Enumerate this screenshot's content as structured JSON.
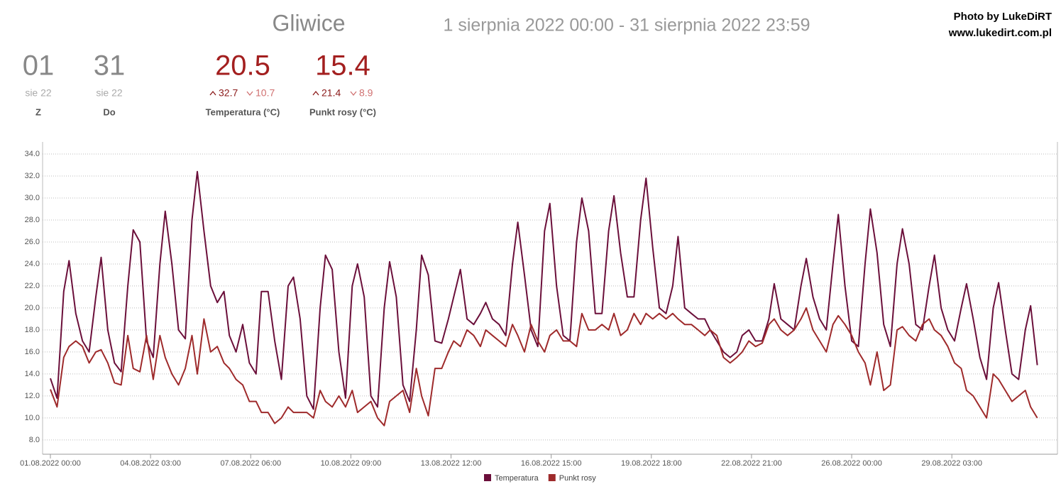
{
  "header": {
    "title": "Gliwice",
    "range": "1 sierpnia 2022 00:00 - 31 sierpnia 2022 23:59",
    "credit": "Photo by LukeDiRT",
    "site": "www.lukedirt.com.pl",
    "stats": [
      {
        "value": "01",
        "sub": "sie 22",
        "label": "Z"
      },
      {
        "value": "31",
        "sub": "sie 22",
        "label": "Do"
      },
      {
        "value": "20.5",
        "max": "32.7",
        "min": "10.7",
        "label": "Temperatura (°C)"
      },
      {
        "value": "15.4",
        "max": "21.4",
        "min": "8.9",
        "label": "Punkt rosy (°C)"
      }
    ]
  },
  "chart_data": {
    "type": "line",
    "x": [
      "01.08.2022 00:00",
      "01.08.2022 05:00",
      "01.08.2022 10:00",
      "01.08.2022 14:00",
      "01.08.2022 19:00",
      "02.08.2022 00:00",
      "02.08.2022 05:00",
      "02.08.2022 10:00",
      "02.08.2022 14:00",
      "02.08.2022 19:00",
      "03.08.2022 00:00",
      "03.08.2022 05:00",
      "03.08.2022 10:00",
      "03.08.2022 14:00",
      "03.08.2022 19:00",
      "04.08.2022 00:00",
      "04.08.2022 05:00",
      "04.08.2022 10:00",
      "04.08.2022 14:00",
      "04.08.2022 19:00",
      "05.08.2022 00:00",
      "05.08.2022 05:00",
      "05.08.2022 10:00",
      "05.08.2022 14:00",
      "05.08.2022 19:00",
      "06.08.2022 00:00",
      "06.08.2022 05:00",
      "06.08.2022 10:00",
      "06.08.2022 14:00",
      "06.08.2022 19:00",
      "07.08.2022 00:00",
      "07.08.2022 05:00",
      "07.08.2022 10:00",
      "07.08.2022 14:00",
      "07.08.2022 19:00",
      "08.08.2022 00:00",
      "08.08.2022 05:00",
      "08.08.2022 10:00",
      "08.08.2022 14:00",
      "08.08.2022 19:00",
      "09.08.2022 00:00",
      "09.08.2022 05:00",
      "09.08.2022 10:00",
      "09.08.2022 14:00",
      "09.08.2022 19:00",
      "10.08.2022 00:00",
      "10.08.2022 05:00",
      "10.08.2022 10:00",
      "10.08.2022 14:00",
      "10.08.2022 19:00",
      "11.08.2022 00:00",
      "11.08.2022 05:00",
      "11.08.2022 10:00",
      "11.08.2022 14:00",
      "11.08.2022 19:00",
      "12.08.2022 00:00",
      "12.08.2022 05:00",
      "12.08.2022 10:00",
      "12.08.2022 14:00",
      "12.08.2022 19:00",
      "13.08.2022 00:00",
      "13.08.2022 05:00",
      "13.08.2022 10:00",
      "13.08.2022 14:00",
      "13.08.2022 19:00",
      "14.08.2022 00:00",
      "14.08.2022 05:00",
      "14.08.2022 10:00",
      "14.08.2022 14:00",
      "14.08.2022 19:00",
      "15.08.2022 00:00",
      "15.08.2022 05:00",
      "15.08.2022 10:00",
      "15.08.2022 14:00",
      "15.08.2022 19:00",
      "16.08.2022 00:00",
      "16.08.2022 05:00",
      "16.08.2022 10:00",
      "16.08.2022 14:00",
      "16.08.2022 19:00",
      "17.08.2022 00:00",
      "17.08.2022 05:00",
      "17.08.2022 10:00",
      "17.08.2022 14:00",
      "17.08.2022 19:00",
      "18.08.2022 00:00",
      "18.08.2022 05:00",
      "18.08.2022 10:00",
      "18.08.2022 14:00",
      "18.08.2022 19:00",
      "19.08.2022 00:00",
      "19.08.2022 05:00",
      "19.08.2022 10:00",
      "19.08.2022 14:00",
      "19.08.2022 19:00",
      "20.08.2022 00:00",
      "20.08.2022 05:00",
      "20.08.2022 10:00",
      "20.08.2022 14:00",
      "20.08.2022 19:00",
      "21.08.2022 00:00",
      "21.08.2022 05:00",
      "21.08.2022 10:00",
      "21.08.2022 14:00",
      "21.08.2022 19:00",
      "22.08.2022 00:00",
      "22.08.2022 05:00",
      "22.08.2022 10:00",
      "22.08.2022 14:00",
      "22.08.2022 19:00",
      "23.08.2022 00:00",
      "23.08.2022 05:00",
      "23.08.2022 10:00",
      "23.08.2022 14:00",
      "23.08.2022 19:00",
      "24.08.2022 00:00",
      "24.08.2022 05:00",
      "24.08.2022 10:00",
      "24.08.2022 14:00",
      "24.08.2022 19:00",
      "25.08.2022 00:00",
      "25.08.2022 05:00",
      "25.08.2022 10:00",
      "25.08.2022 14:00",
      "25.08.2022 19:00",
      "26.08.2022 00:00",
      "26.08.2022 05:00",
      "26.08.2022 10:00",
      "26.08.2022 14:00",
      "26.08.2022 19:00",
      "27.08.2022 00:00",
      "27.08.2022 05:00",
      "27.08.2022 10:00",
      "27.08.2022 14:00",
      "27.08.2022 19:00",
      "28.08.2022 00:00",
      "28.08.2022 05:00",
      "28.08.2022 10:00",
      "28.08.2022 14:00",
      "28.08.2022 19:00",
      "29.08.2022 00:00",
      "29.08.2022 05:00",
      "29.08.2022 10:00",
      "29.08.2022 14:00",
      "29.08.2022 19:00",
      "30.08.2022 00:00",
      "30.08.2022 05:00",
      "30.08.2022 10:00",
      "30.08.2022 14:00",
      "30.08.2022 19:00",
      "31.08.2022 00:00",
      "31.08.2022 05:00",
      "31.08.2022 10:00",
      "31.08.2022 14:00",
      "31.08.2022 19:00"
    ],
    "series": [
      {
        "name": "Temperatura",
        "color": "#6b0f3a",
        "values": [
          13.6,
          11.8,
          21.5,
          24.3,
          19.5,
          17,
          16,
          21,
          24.6,
          18,
          15,
          14.2,
          22,
          27.1,
          26,
          17,
          15.5,
          24,
          28.8,
          24,
          18,
          17.2,
          28,
          32.4,
          27,
          22,
          20.5,
          21.5,
          17.5,
          16,
          18.5,
          15,
          14,
          21.5,
          21.5,
          17,
          13.5,
          22,
          22.8,
          19,
          12,
          10.8,
          20,
          24.8,
          23.5,
          16,
          11.8,
          22,
          24.0,
          21,
          12,
          11,
          20,
          24.2,
          21,
          13,
          11.5,
          18,
          24.8,
          23,
          17,
          16.8,
          19,
          21,
          23.5,
          19,
          18.5,
          19.5,
          20.5,
          19,
          18.5,
          17.5,
          24,
          27.8,
          23,
          18,
          16.5,
          27,
          29.5,
          22,
          17.5,
          17,
          26,
          30,
          27,
          19.5,
          19.5,
          27,
          30.2,
          25,
          21,
          21,
          28,
          31.8,
          25.5,
          20,
          19.5,
          22,
          26.5,
          20,
          19.5,
          19,
          19,
          18,
          17,
          16,
          15.5,
          16,
          17.5,
          18,
          17,
          17,
          19,
          22.2,
          19,
          18.5,
          18,
          22,
          24.5,
          21,
          19,
          18,
          24,
          28.5,
          22,
          17,
          16.5,
          24,
          29,
          25,
          18.5,
          16.5,
          24,
          27.2,
          24,
          18.5,
          18,
          22,
          24.8,
          20,
          18,
          17,
          20,
          22.2,
          19,
          15.5,
          13.5,
          20,
          22.3,
          18,
          14,
          13.5,
          18,
          20.2,
          14.8
        ]
      },
      {
        "name": "Punkt rosy",
        "color": "#9e2a2b",
        "values": [
          12.6,
          11,
          15.5,
          16.5,
          17,
          16.5,
          15,
          16,
          16.2,
          15,
          13.2,
          13,
          17.5,
          14.5,
          14.2,
          17.5,
          13.5,
          17.5,
          15.5,
          14,
          13,
          14.5,
          17.5,
          14,
          19,
          16,
          16.5,
          15,
          14.5,
          13.5,
          13,
          11.5,
          11.5,
          10.5,
          10.5,
          9.5,
          10,
          11,
          10.5,
          10.5,
          10.5,
          10,
          12.5,
          11.5,
          11,
          12,
          11,
          12.5,
          10.5,
          11,
          11.5,
          10,
          9.3,
          11.5,
          12,
          12.5,
          10.5,
          14.5,
          12,
          10.2,
          14.5,
          14.5,
          16,
          17,
          16.5,
          18,
          17.5,
          16.5,
          18,
          17.5,
          17,
          16.5,
          18.5,
          17.5,
          16,
          18.5,
          17,
          16,
          17.5,
          18,
          17,
          17,
          16.5,
          19.5,
          18,
          18,
          18.5,
          18,
          19.5,
          17.5,
          18,
          19.5,
          18.5,
          19.5,
          19,
          19.5,
          19,
          19.5,
          19,
          18.5,
          18.5,
          18,
          17.5,
          18,
          17.5,
          15.5,
          15,
          15.5,
          16,
          17,
          16.5,
          16.8,
          18.5,
          19,
          18,
          17.5,
          18,
          19,
          20,
          18,
          17,
          16,
          18.5,
          19.3,
          18.5,
          17.5,
          16,
          15,
          13,
          16,
          12.5,
          13,
          18,
          18.3,
          17.5,
          17,
          18.5,
          19,
          18,
          17.5,
          16.5,
          15,
          14.5,
          12.5,
          12,
          11,
          10,
          14,
          13.5,
          12.5,
          11.5,
          12,
          12.5,
          11,
          10
        ]
      }
    ],
    "xlim": [
      "01.08.2022 00:00",
      "31.08.2022 23:59"
    ],
    "xticks": [
      "01.08.2022 00:00",
      "04.08.2022 03:00",
      "07.08.2022 06:00",
      "10.08.2022 09:00",
      "13.08.2022 12:00",
      "16.08.2022 15:00",
      "19.08.2022 18:00",
      "22.08.2022 21:00",
      "26.08.2022 00:00",
      "29.08.2022 03:00"
    ],
    "ylim": [
      6.7,
      35
    ],
    "yticks": [
      {
        "value": 8,
        "label": "8.0"
      },
      {
        "value": 10,
        "label": "10.0"
      },
      {
        "value": 12,
        "label": "12.0"
      },
      {
        "value": 14,
        "label": "14.0"
      },
      {
        "value": 16,
        "label": "16.0"
      },
      {
        "value": 18,
        "label": "18.0"
      },
      {
        "value": 20,
        "label": "20.0"
      },
      {
        "value": 22,
        "label": "22.0"
      },
      {
        "value": 24,
        "label": "24.0"
      },
      {
        "value": 26,
        "label": "26.0"
      },
      {
        "value": 28,
        "label": "28.0"
      },
      {
        "value": 30,
        "label": "30.0"
      },
      {
        "value": 32,
        "label": "32.0"
      },
      {
        "value": 34,
        "label": "34.0"
      }
    ],
    "grid": true,
    "legend": "bottom"
  }
}
